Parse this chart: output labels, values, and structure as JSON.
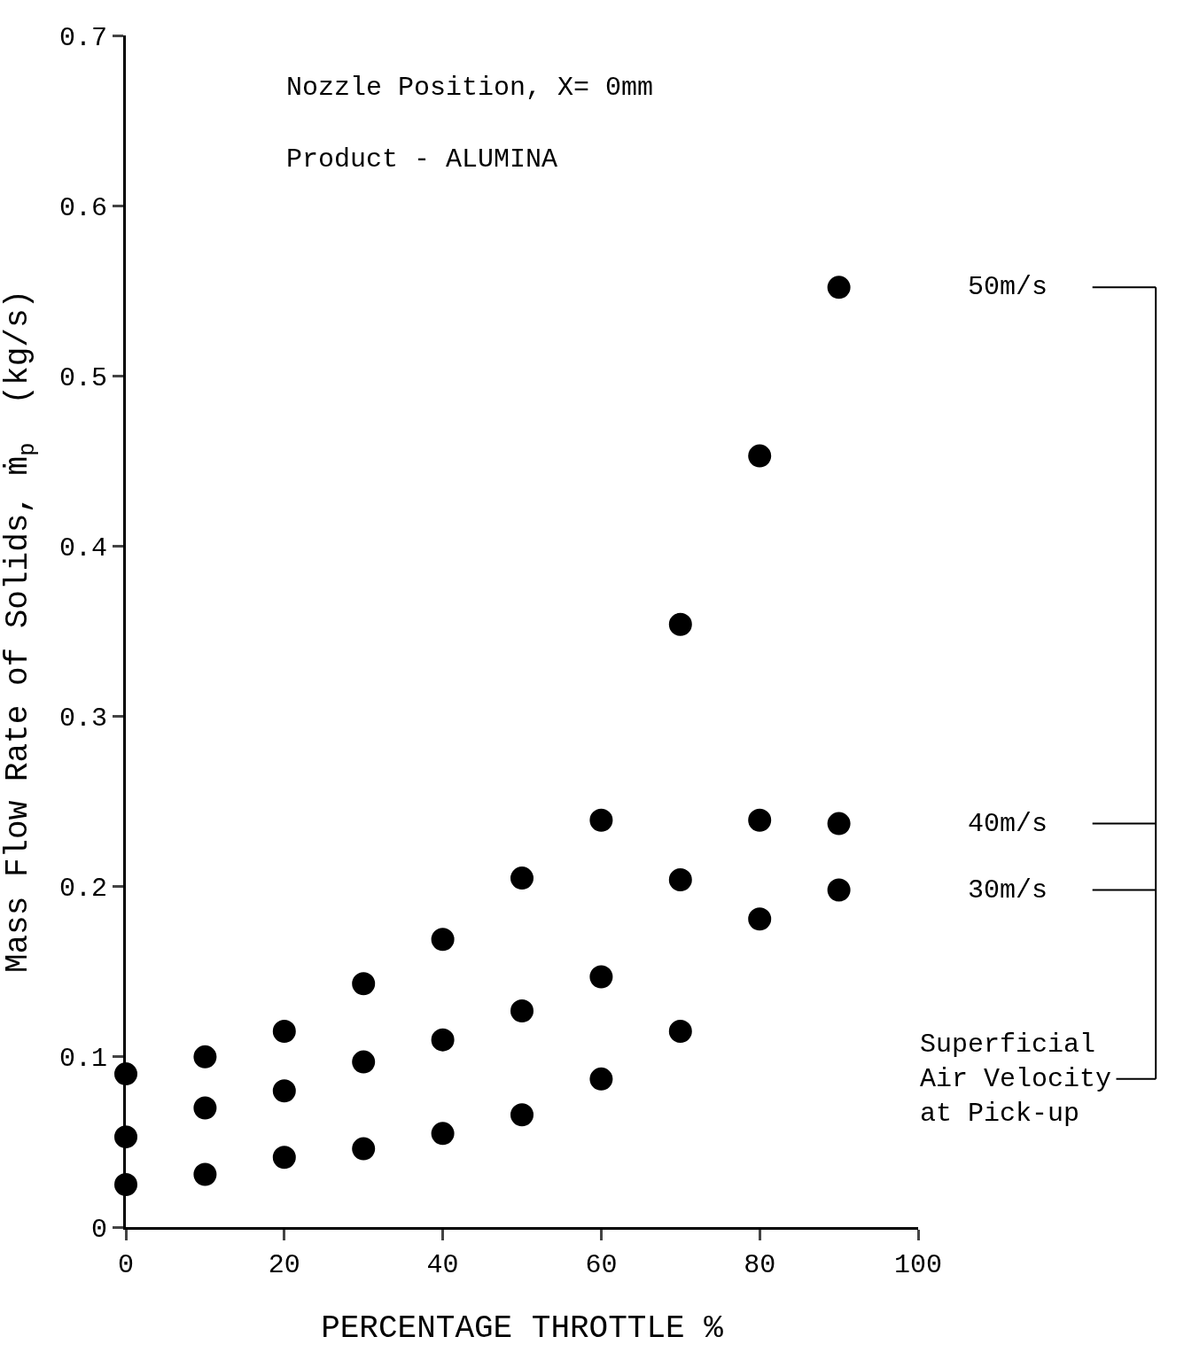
{
  "chart_data": {
    "type": "scatter",
    "xlabel": "PERCENTAGE THROTTLE %",
    "ylabel": "Mass Flow Rate of Solids, ṁ$_{p}$  (kg/s)",
    "x": [
      0,
      10,
      20,
      30,
      40,
      50,
      60,
      70,
      80,
      90
    ],
    "series": [
      {
        "name": "50m/s",
        "color": "#000000",
        "values": [
          0.09,
          0.1,
          0.115,
          0.143,
          0.169,
          0.205,
          0.239,
          0.354,
          0.453,
          0.552
        ]
      },
      {
        "name": "40m/s",
        "color": "#000000",
        "values": [
          0.053,
          0.07,
          0.08,
          0.097,
          0.11,
          0.127,
          0.147,
          0.204,
          0.239,
          0.237
        ]
      },
      {
        "name": "30m/s",
        "color": "#000000",
        "values": [
          0.025,
          0.031,
          0.041,
          0.046,
          0.055,
          0.066,
          0.087,
          0.115,
          0.181,
          0.198
        ]
      }
    ],
    "annotations": [
      "Nozzle Position, X= 0mm",
      "Product - ALUMINA",
      "Superficial\nAir Velocity\nat Pick-up"
    ],
    "xlim": [
      0,
      100
    ],
    "ylim": [
      0,
      0.7
    ],
    "xticks": [
      0,
      20,
      40,
      60,
      80,
      100
    ],
    "yticks": [
      0,
      0.1,
      0.2,
      0.3,
      0.4,
      0.5,
      0.6,
      0.7
    ],
    "marker": "circle",
    "legend": "right"
  }
}
